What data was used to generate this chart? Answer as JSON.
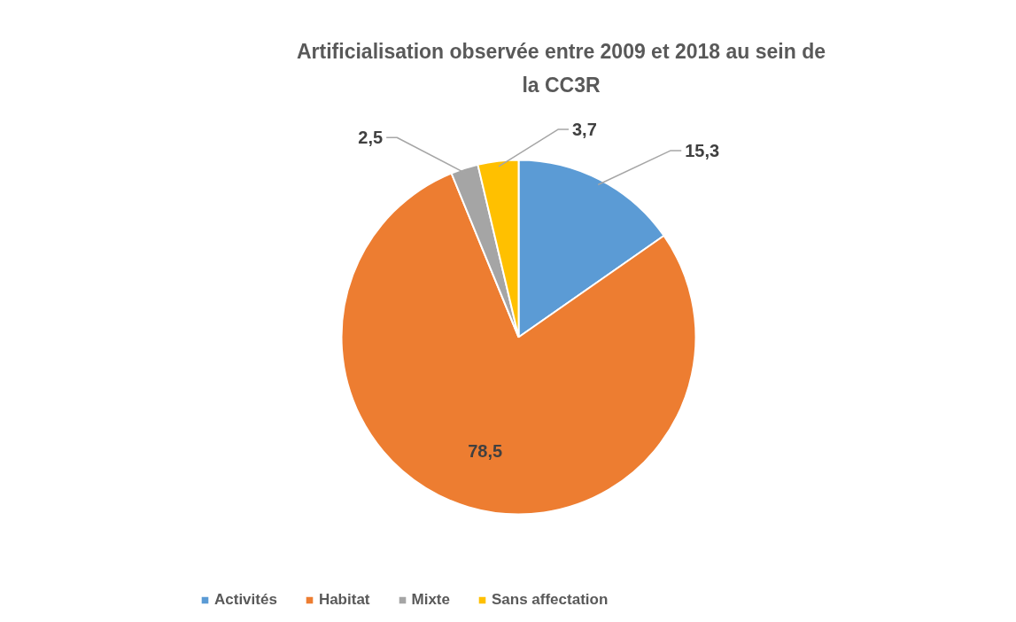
{
  "chart_data": {
    "type": "pie",
    "title": "Artificialisation observée entre 2009 et 2018 au sein de la CC3R",
    "categories": [
      "Activités",
      "Habitat",
      "Mixte",
      "Sans affectation"
    ],
    "values": [
      15.3,
      78.5,
      2.5,
      3.7
    ],
    "colors": [
      "#5b9bd5",
      "#ed7d31",
      "#a5a5a5",
      "#ffc000"
    ],
    "value_labels": [
      "15,3",
      "78,5",
      "2,5",
      "3,7"
    ],
    "legend": "bottom"
  }
}
